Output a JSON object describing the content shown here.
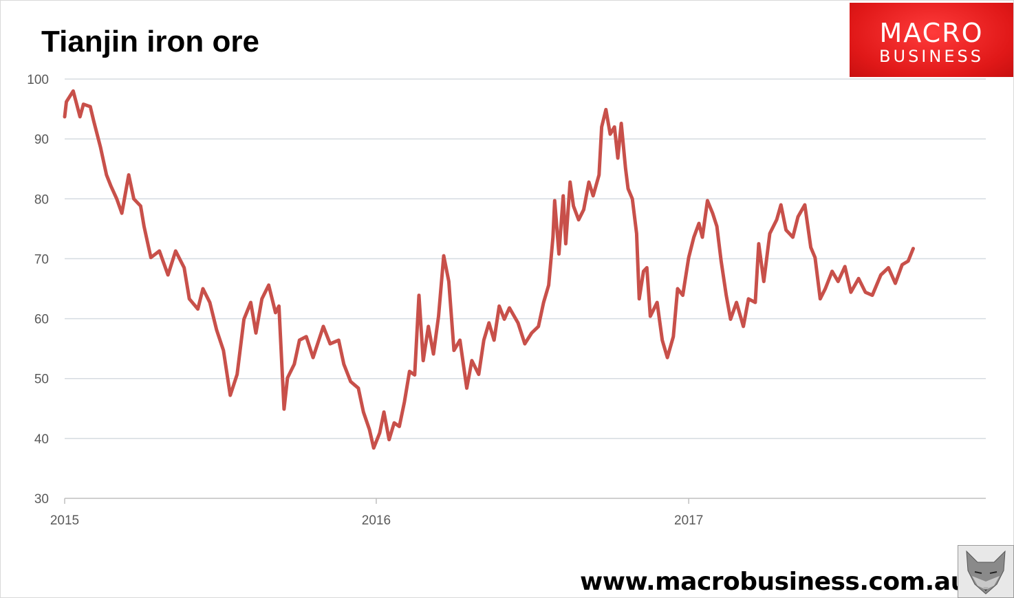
{
  "chart_data": {
    "type": "line",
    "title": "Tianjin iron ore",
    "xlabel": "",
    "ylabel": "",
    "ylim": [
      30,
      100
    ],
    "yticks": [
      30,
      40,
      50,
      60,
      70,
      80,
      90,
      100
    ],
    "xlim": [
      "2015-01-01",
      "2017-12-15"
    ],
    "xticks": [
      {
        "date": "2015-01-01",
        "label": "2015"
      },
      {
        "date": "2016-01-01",
        "label": "2016"
      },
      {
        "date": "2017-01-01",
        "label": "2017"
      }
    ],
    "grid": true,
    "legend": "none",
    "line_color": "#c8504a",
    "grid_color": "#d5dbe1",
    "series": [
      {
        "points": [
          [
            "2015-01-01",
            93.7
          ],
          [
            "2015-01-03",
            96.2
          ],
          [
            "2015-01-11",
            98.0
          ],
          [
            "2015-01-19",
            93.7
          ],
          [
            "2015-01-23",
            95.8
          ],
          [
            "2015-01-31",
            95.4
          ],
          [
            "2015-02-04",
            93.0
          ],
          [
            "2015-02-12",
            88.6
          ],
          [
            "2015-02-19",
            84.0
          ],
          [
            "2015-02-24",
            82.2
          ],
          [
            "2015-03-03",
            80.0
          ],
          [
            "2015-03-09",
            77.6
          ],
          [
            "2015-03-17",
            84.0
          ],
          [
            "2015-03-23",
            80.0
          ],
          [
            "2015-03-31",
            78.8
          ],
          [
            "2015-04-04",
            75.4
          ],
          [
            "2015-04-12",
            70.2
          ],
          [
            "2015-04-22",
            71.3
          ],
          [
            "2015-05-02",
            67.3
          ],
          [
            "2015-05-11",
            71.3
          ],
          [
            "2015-05-21",
            68.5
          ],
          [
            "2015-05-27",
            63.3
          ],
          [
            "2015-06-06",
            61.6
          ],
          [
            "2015-06-12",
            65.0
          ],
          [
            "2015-06-20",
            62.7
          ],
          [
            "2015-06-28",
            58.1
          ],
          [
            "2015-07-06",
            54.7
          ],
          [
            "2015-07-14",
            47.2
          ],
          [
            "2015-07-22",
            50.7
          ],
          [
            "2015-07-30",
            59.9
          ],
          [
            "2015-08-07",
            62.7
          ],
          [
            "2015-08-13",
            57.6
          ],
          [
            "2015-08-20",
            63.3
          ],
          [
            "2015-08-28",
            65.6
          ],
          [
            "2015-09-05",
            61.0
          ],
          [
            "2015-09-09",
            62.1
          ],
          [
            "2015-09-15",
            44.9
          ],
          [
            "2015-09-19",
            50.1
          ],
          [
            "2015-09-27",
            52.4
          ],
          [
            "2015-10-03",
            56.4
          ],
          [
            "2015-10-11",
            57.0
          ],
          [
            "2015-10-19",
            53.5
          ],
          [
            "2015-10-31",
            58.7
          ],
          [
            "2015-11-08",
            55.8
          ],
          [
            "2015-11-18",
            56.4
          ],
          [
            "2015-11-24",
            52.4
          ],
          [
            "2015-12-02",
            49.5
          ],
          [
            "2015-12-11",
            48.4
          ],
          [
            "2015-12-17",
            44.4
          ],
          [
            "2015-12-24",
            41.5
          ],
          [
            "2015-12-29",
            38.4
          ],
          [
            "2016-01-05",
            40.9
          ],
          [
            "2016-01-10",
            44.4
          ],
          [
            "2016-01-16",
            39.8
          ],
          [
            "2016-01-22",
            42.6
          ],
          [
            "2016-01-28",
            42.0
          ],
          [
            "2016-02-03",
            46.1
          ],
          [
            "2016-02-09",
            51.2
          ],
          [
            "2016-02-15",
            50.6
          ],
          [
            "2016-02-20",
            63.9
          ],
          [
            "2016-02-25",
            53.0
          ],
          [
            "2016-03-02",
            58.7
          ],
          [
            "2016-03-08",
            54.1
          ],
          [
            "2016-03-14",
            60.4
          ],
          [
            "2016-03-20",
            70.5
          ],
          [
            "2016-03-26",
            66.2
          ],
          [
            "2016-04-01",
            54.7
          ],
          [
            "2016-04-08",
            56.4
          ],
          [
            "2016-04-16",
            48.4
          ],
          [
            "2016-04-22",
            53.0
          ],
          [
            "2016-04-30",
            50.7
          ],
          [
            "2016-05-06",
            56.4
          ],
          [
            "2016-05-12",
            59.3
          ],
          [
            "2016-05-18",
            56.4
          ],
          [
            "2016-05-24",
            62.1
          ],
          [
            "2016-05-30",
            59.9
          ],
          [
            "2016-06-05",
            61.8
          ],
          [
            "2016-06-15",
            59.3
          ],
          [
            "2016-06-23",
            55.8
          ],
          [
            "2016-07-01",
            57.6
          ],
          [
            "2016-07-09",
            58.7
          ],
          [
            "2016-07-15",
            62.7
          ],
          [
            "2016-07-21",
            65.6
          ],
          [
            "2016-07-26",
            73.6
          ],
          [
            "2016-07-28",
            79.7
          ],
          [
            "2016-08-02",
            70.8
          ],
          [
            "2016-08-07",
            80.5
          ],
          [
            "2016-08-10",
            72.5
          ],
          [
            "2016-08-15",
            82.8
          ],
          [
            "2016-08-19",
            78.8
          ],
          [
            "2016-08-25",
            76.5
          ],
          [
            "2016-08-31",
            78.2
          ],
          [
            "2016-09-06",
            82.8
          ],
          [
            "2016-09-11",
            80.5
          ],
          [
            "2016-09-18",
            84.0
          ],
          [
            "2016-09-21",
            92.0
          ],
          [
            "2016-09-26",
            94.9
          ],
          [
            "2016-10-01",
            90.8
          ],
          [
            "2016-10-06",
            92.0
          ],
          [
            "2016-10-10",
            86.8
          ],
          [
            "2016-10-14",
            92.6
          ],
          [
            "2016-10-19",
            85.1
          ],
          [
            "2016-10-22",
            81.7
          ],
          [
            "2016-10-27",
            80.0
          ],
          [
            "2016-11-01",
            74.2
          ],
          [
            "2016-11-04",
            63.3
          ],
          [
            "2016-11-09",
            67.9
          ],
          [
            "2016-11-13",
            68.5
          ],
          [
            "2016-11-17",
            60.4
          ],
          [
            "2016-11-25",
            62.7
          ],
          [
            "2016-12-01",
            56.4
          ],
          [
            "2016-12-07",
            53.5
          ],
          [
            "2016-12-14",
            57.0
          ],
          [
            "2016-12-19",
            65.0
          ],
          [
            "2016-12-25",
            63.9
          ],
          [
            "2017-01-01",
            70.2
          ],
          [
            "2017-01-07",
            73.6
          ],
          [
            "2017-01-13",
            75.9
          ],
          [
            "2017-01-17",
            73.6
          ],
          [
            "2017-01-23",
            79.7
          ],
          [
            "2017-01-29",
            77.6
          ],
          [
            "2017-02-03",
            75.4
          ],
          [
            "2017-02-08",
            69.6
          ],
          [
            "2017-02-14",
            63.9
          ],
          [
            "2017-02-19",
            59.9
          ],
          [
            "2017-02-26",
            62.7
          ],
          [
            "2017-03-06",
            58.7
          ],
          [
            "2017-03-12",
            63.3
          ],
          [
            "2017-03-20",
            62.7
          ],
          [
            "2017-03-24",
            72.5
          ],
          [
            "2017-03-30",
            66.2
          ],
          [
            "2017-04-06",
            74.2
          ],
          [
            "2017-04-14",
            76.5
          ],
          [
            "2017-04-19",
            79.0
          ],
          [
            "2017-04-25",
            74.8
          ],
          [
            "2017-05-03",
            73.6
          ],
          [
            "2017-05-09",
            77.0
          ],
          [
            "2017-05-17",
            79.0
          ],
          [
            "2017-05-24",
            71.9
          ],
          [
            "2017-05-29",
            70.2
          ],
          [
            "2017-06-04",
            63.3
          ],
          [
            "2017-06-10",
            65.0
          ],
          [
            "2017-06-18",
            67.9
          ],
          [
            "2017-06-25",
            66.2
          ],
          [
            "2017-07-03",
            68.7
          ],
          [
            "2017-07-10",
            64.4
          ],
          [
            "2017-07-19",
            66.7
          ],
          [
            "2017-07-27",
            64.4
          ],
          [
            "2017-08-04",
            63.9
          ],
          [
            "2017-08-14",
            67.3
          ],
          [
            "2017-08-23",
            68.5
          ],
          [
            "2017-08-31",
            65.9
          ],
          [
            "2017-09-08",
            69.0
          ],
          [
            "2017-09-15",
            69.6
          ],
          [
            "2017-09-21",
            71.7
          ]
        ]
      }
    ]
  },
  "branding": {
    "logo_line1": "MACRO",
    "logo_line2": "BUSINESS",
    "url": "www.macrobusiness.com.au",
    "logo_color": "#e82020",
    "mascot_icon": "wolf-icon"
  }
}
